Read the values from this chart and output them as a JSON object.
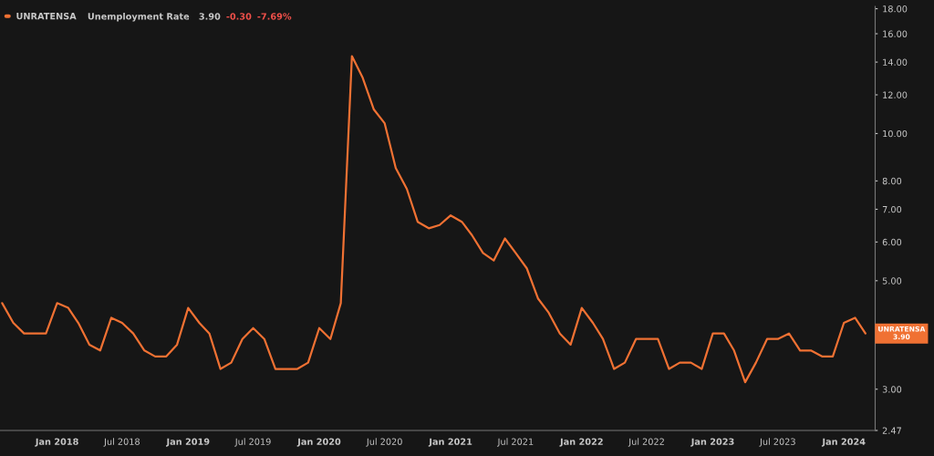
{
  "chart_data": {
    "type": "line",
    "title": "Unemployment Rate",
    "series": [
      {
        "name": "UNRATENSA",
        "color": "#f07133",
        "x": [
          "2017-08",
          "2017-09",
          "2017-10",
          "2017-11",
          "2017-12",
          "2018-01",
          "2018-02",
          "2018-03",
          "2018-04",
          "2018-05",
          "2018-06",
          "2018-07",
          "2018-08",
          "2018-09",
          "2018-10",
          "2018-11",
          "2018-12",
          "2019-01",
          "2019-02",
          "2019-03",
          "2019-04",
          "2019-05",
          "2019-06",
          "2019-07",
          "2019-08",
          "2019-09",
          "2019-10",
          "2019-11",
          "2019-12",
          "2020-01",
          "2020-02",
          "2020-03",
          "2020-04",
          "2020-05",
          "2020-06",
          "2020-07",
          "2020-08",
          "2020-09",
          "2020-10",
          "2020-11",
          "2020-12",
          "2021-01",
          "2021-02",
          "2021-03",
          "2021-04",
          "2021-05",
          "2021-06",
          "2021-07",
          "2021-08",
          "2021-09",
          "2021-10",
          "2021-11",
          "2021-12",
          "2022-01",
          "2022-02",
          "2022-03",
          "2022-04",
          "2022-05",
          "2022-06",
          "2022-07",
          "2022-08",
          "2022-09",
          "2022-10",
          "2022-11",
          "2022-12",
          "2023-01",
          "2023-02",
          "2023-03",
          "2023-04",
          "2023-05",
          "2023-06",
          "2023-07",
          "2023-08",
          "2023-09",
          "2023-10",
          "2023-11",
          "2023-12",
          "2024-01",
          "2024-02",
          "2024-03"
        ],
        "values": [
          4.5,
          4.1,
          3.9,
          3.9,
          3.9,
          4.5,
          4.4,
          4.1,
          3.7,
          3.6,
          4.2,
          4.1,
          3.9,
          3.6,
          3.5,
          3.5,
          3.7,
          4.4,
          4.1,
          3.9,
          3.3,
          3.4,
          3.8,
          4.0,
          3.8,
          3.3,
          3.3,
          3.3,
          3.4,
          4.0,
          3.8,
          4.5,
          14.4,
          13.0,
          11.2,
          10.5,
          8.5,
          7.7,
          6.6,
          6.4,
          6.5,
          6.8,
          6.6,
          6.2,
          5.7,
          5.5,
          6.1,
          5.7,
          5.3,
          4.6,
          4.3,
          3.9,
          3.7,
          4.4,
          4.1,
          3.8,
          3.3,
          3.4,
          3.8,
          3.8,
          3.8,
          3.3,
          3.4,
          3.4,
          3.3,
          3.9,
          3.9,
          3.6,
          3.1,
          3.4,
          3.8,
          3.8,
          3.9,
          3.6,
          3.6,
          3.5,
          3.5,
          4.1,
          4.2,
          3.9
        ]
      }
    ],
    "annotations": [
      "3.90",
      "-0.30",
      "-7.69%",
      {
        "text": "UNRATENSA\n3.90",
        "x": "2024-03",
        "y": 3.9
      }
    ],
    "log": "y",
    "ylim": [
      2.47,
      18.2
    ],
    "yticks": [
      {
        "value": 2.47,
        "label": "2.47"
      },
      {
        "value": 3,
        "label": "3.00"
      },
      {
        "value": 5,
        "label": "5.00"
      },
      {
        "value": 6,
        "label": "6.00"
      },
      {
        "value": 7,
        "label": "7.00"
      },
      {
        "value": 8,
        "label": "8.00"
      },
      {
        "value": 10,
        "label": "10.00"
      },
      {
        "value": 12,
        "label": "12.00"
      },
      {
        "value": 14,
        "label": "14.00"
      },
      {
        "value": 16,
        "label": "16.00"
      },
      {
        "value": 18,
        "label": "18.00"
      }
    ],
    "xlim": [
      "2017-07-26",
      "2024-03-28"
    ],
    "xticks": [
      {
        "value": "2018-01",
        "label": "Jan 2018"
      },
      {
        "value": "2018-07",
        "label": "Jul 2018"
      },
      {
        "value": "2019-01",
        "label": "Jan 2019"
      },
      {
        "value": "2019-07",
        "label": "Jul 2019"
      },
      {
        "value": "2020-01",
        "label": "Jan 2020"
      },
      {
        "value": "2020-07",
        "label": "Jul 2020"
      },
      {
        "value": "2021-01",
        "label": "Jan 2021"
      },
      {
        "value": "2021-07",
        "label": "Jul 2021"
      },
      {
        "value": "2022-01",
        "label": "Jan 2022"
      },
      {
        "value": "2022-07",
        "label": "Jul 2022"
      },
      {
        "value": "2023-01",
        "label": "Jan 2023"
      },
      {
        "value": "2023-07",
        "label": "Jul 2023"
      },
      {
        "value": "2024-01",
        "label": "Jan 2024"
      }
    ],
    "grid": false,
    "legend": "top left",
    "marker": "none",
    "line_style": "solid"
  }
}
